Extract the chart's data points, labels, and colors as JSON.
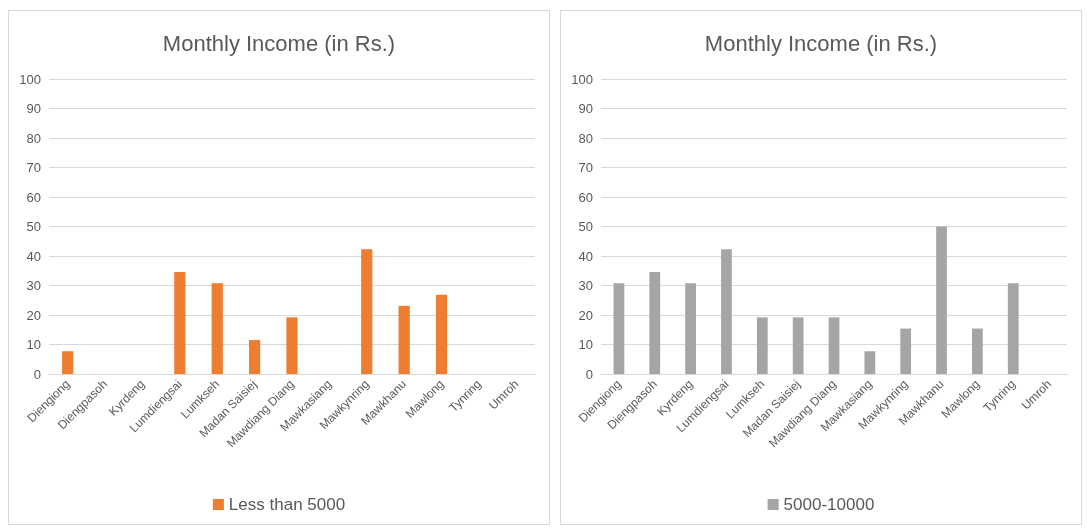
{
  "chart_data": [
    {
      "type": "bar",
      "title": "Monthly Income (in Rs.)",
      "categories": [
        "Diengiong",
        "Diengpasoh",
        "Kyrdeng",
        "Lumdiengsai",
        "Lumkseh",
        "Madan Saisiej",
        "Mawdiang Diang",
        "Mawkasiang",
        "Mawkynring",
        "Mawkhanu",
        "Mawlong",
        "Tynring",
        "Umroh"
      ],
      "series": [
        {
          "name": "Less than 5000",
          "color": "#ed7d31",
          "values": [
            7.7,
            0,
            0,
            34.6,
            30.8,
            11.5,
            19.2,
            0,
            42.3,
            23.1,
            26.9,
            0,
            0
          ]
        }
      ],
      "ylim": [
        0,
        100
      ],
      "yticks": [
        0,
        10,
        20,
        30,
        40,
        50,
        60,
        70,
        80,
        90,
        100
      ],
      "grid": "y",
      "legend": "bottom"
    },
    {
      "type": "bar",
      "title": "Monthly Income (in Rs.)",
      "categories": [
        "Diengiong",
        "Diengpasoh",
        "Kyrdeng",
        "Lumdiengsai",
        "Lumkseh",
        "Madan Saisiej",
        "Mawdiang Diang",
        "Mawkasiang",
        "Mawkynring",
        "Mawkhanu",
        "Mawlong",
        "Tynring",
        "Umroh"
      ],
      "series": [
        {
          "name": "5000-10000",
          "color": "#a5a5a5",
          "values": [
            30.8,
            34.6,
            30.8,
            42.3,
            19.2,
            19.2,
            19.2,
            7.7,
            15.4,
            50,
            15.4,
            30.8,
            0
          ]
        }
      ],
      "ylim": [
        0,
        100
      ],
      "yticks": [
        0,
        10,
        20,
        30,
        40,
        50,
        60,
        70,
        80,
        90,
        100
      ],
      "grid": "y",
      "legend": "bottom"
    }
  ]
}
